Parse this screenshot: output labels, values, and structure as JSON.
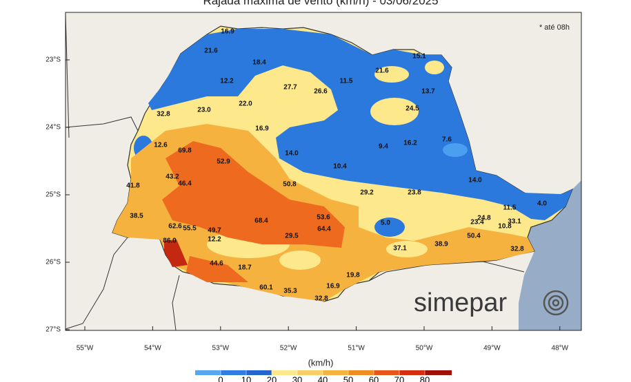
{
  "title": "Rajada máxima de vento (km/h) - 03/06/2025",
  "note": "* até 08h",
  "brand": "simepar",
  "lat_labels": [
    "23°S",
    "24°S",
    "25°S",
    "26°S",
    "27°S"
  ],
  "lon_labels": [
    "55°W",
    "54°W",
    "53°W",
    "52°W",
    "51°W",
    "50°W",
    "49°W",
    "48°W"
  ],
  "colorbar": {
    "unit": "(km/h)",
    "ticks": [
      0,
      10,
      20,
      30,
      40,
      50,
      60,
      70,
      80
    ]
  },
  "stations": [
    "16.9",
    "21.6",
    "18.4",
    "12.2",
    "27.7",
    "26.6",
    "11.5",
    "21.6",
    "15.1",
    "13.7",
    "22.0",
    "23.0",
    "32.8",
    "24.5",
    "16.9",
    "12.6",
    "69.8",
    "9.4",
    "16.2",
    "7.6",
    "14.0",
    "52.9",
    "10.4",
    "43.2",
    "46.4",
    "14.0",
    "50.8",
    "41.8",
    "29.2",
    "23.8",
    "4.0",
    "11.5",
    "38.5",
    "53.6",
    "24.8",
    "23.4",
    "68.4",
    "5.0",
    "10.8",
    "33.1",
    "62.6",
    "55.5",
    "64.4",
    "49.7",
    "12.2",
    "29.5",
    "50.4",
    "86.0",
    "37.1",
    "38.9",
    "32.8",
    "44.6",
    "18.7",
    "19.8",
    "60.1",
    "16.9",
    "35.3",
    "32.8"
  ]
}
